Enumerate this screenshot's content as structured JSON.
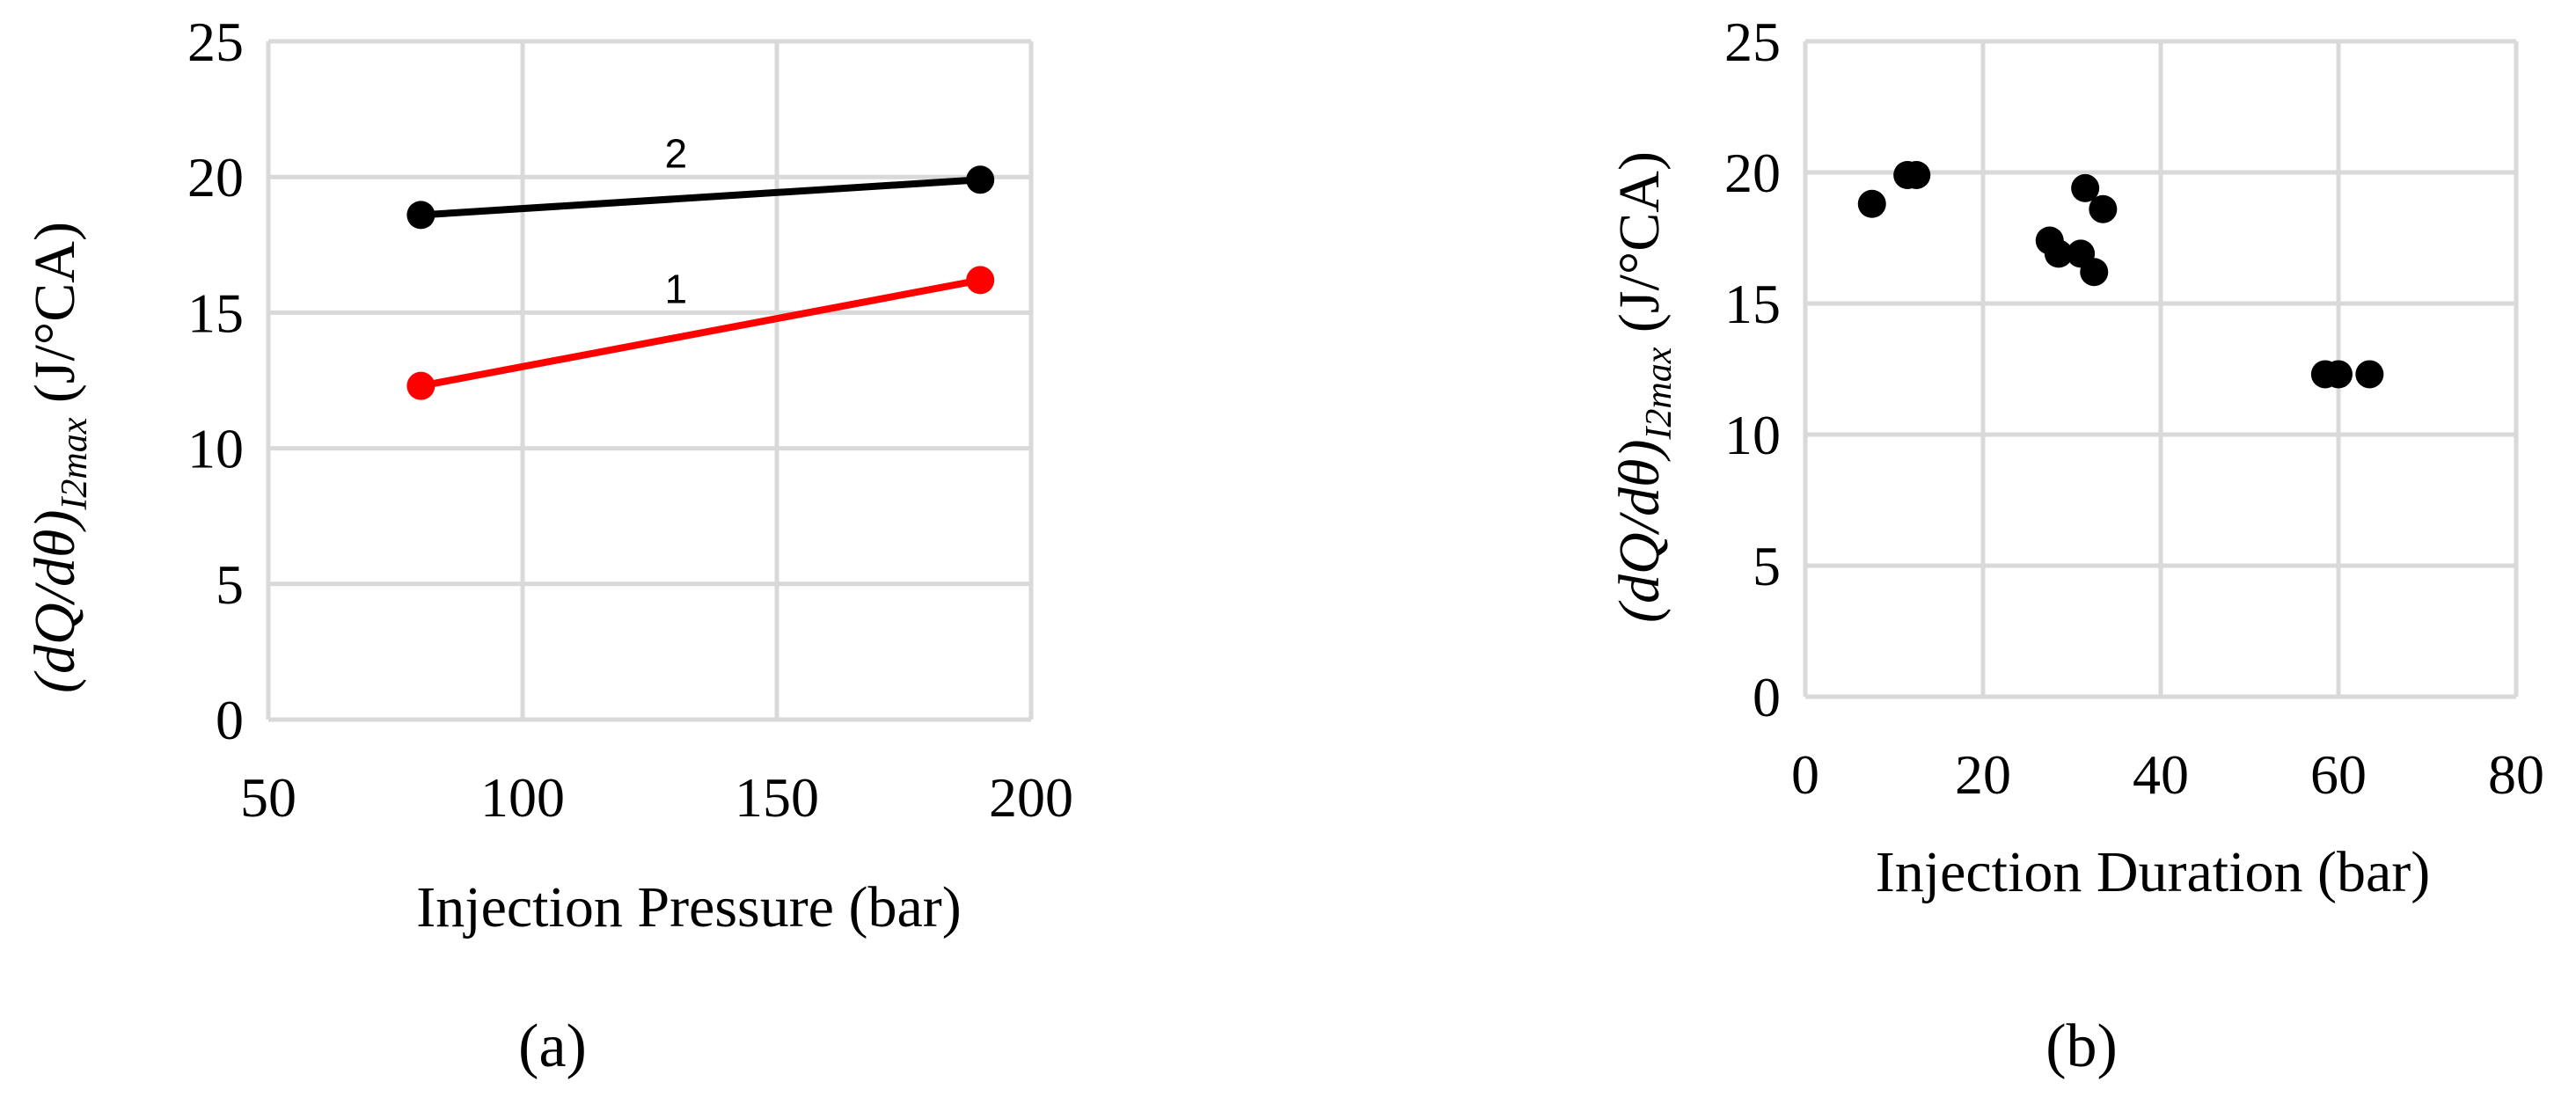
{
  "chart_data": [
    {
      "panel": "(a)",
      "type": "line",
      "xlabel": "Injection Pressure (bar)",
      "ylabel": {
        "prefix": "(dQ/dθ)",
        "subscript": "I2max",
        "unit": "(J/°CA)"
      },
      "xlim": [
        50,
        200
      ],
      "ylim": [
        0,
        25
      ],
      "xticks": [
        50,
        100,
        150,
        200
      ],
      "yticks": [
        0,
        5,
        10,
        15,
        20,
        25
      ],
      "grid": true,
      "legend": "none",
      "series": [
        {
          "name": "1",
          "color": "#ff0000",
          "x": [
            80,
            190
          ],
          "y": [
            12.3,
            16.2
          ]
        },
        {
          "name": "2",
          "color": "#000000",
          "x": [
            80,
            190
          ],
          "y": [
            18.6,
            19.9
          ]
        }
      ]
    },
    {
      "panel": "(b)",
      "type": "scatter",
      "xlabel": "Injection Duration (bar)",
      "ylabel": {
        "prefix": "(dQ/dθ)",
        "subscript": "I2max",
        "unit": "(J/°CA)"
      },
      "xlim": [
        0,
        80
      ],
      "ylim": [
        0,
        25
      ],
      "xticks": [
        0,
        20,
        40,
        60,
        80
      ],
      "yticks": [
        0,
        5,
        10,
        15,
        20,
        25
      ],
      "grid": true,
      "legend": "none",
      "series": [
        {
          "color": "#000000",
          "x": [
            7.5,
            11.5,
            12.5,
            27.5,
            28.5,
            31,
            31.5,
            32.5,
            33.5,
            58.5,
            60,
            63.5
          ],
          "y": [
            18.8,
            19.9,
            19.9,
            17.4,
            16.9,
            16.9,
            19.4,
            16.2,
            18.6,
            12.3,
            12.3,
            12.3
          ]
        }
      ]
    }
  ]
}
